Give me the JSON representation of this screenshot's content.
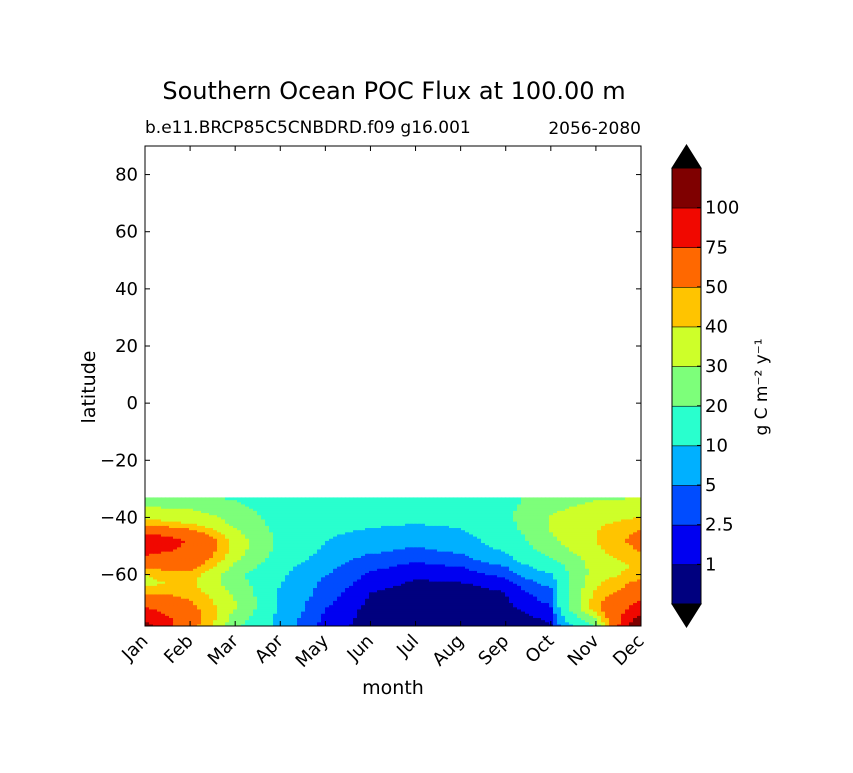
{
  "chart_data": {
    "type": "heatmap",
    "title": "Southern Ocean POC Flux at 100.00 m",
    "subtitle_left": "b.e11.BRCP85C5CNBDRD.f09 g16.001",
    "subtitle_right": "2056-2080",
    "xlabel": "month",
    "ylabel": "latitude",
    "x_ticks": [
      "Jan",
      "Feb",
      "Mar",
      "Apr",
      "May",
      "Jun",
      "Jul",
      "Aug",
      "Sep",
      "Oct",
      "Nov",
      "Dec"
    ],
    "y_ticks": [
      80,
      60,
      40,
      20,
      0,
      -20,
      -40,
      -60
    ],
    "xlim": [
      0,
      11
    ],
    "ylim": [
      -78,
      90
    ],
    "data_lat_range": [
      -78,
      -33
    ],
    "grid": false,
    "colorbar": {
      "label": "g C m⁻² y⁻¹",
      "levels": [
        0,
        1,
        2.5,
        5,
        10,
        20,
        30,
        40,
        50,
        75,
        100,
        125
      ],
      "tick_labels": [
        "1",
        "2.5",
        "5",
        "10",
        "20",
        "30",
        "40",
        "50",
        "75",
        "100"
      ],
      "colors": [
        "#00007f",
        "#0000f1",
        "#004cff",
        "#00b0ff",
        "#29ffce",
        "#7dff7a",
        "#ceff29",
        "#ffc400",
        "#ff6800",
        "#f10800",
        "#7f0000"
      ],
      "extend": "both",
      "under_color": "#000000",
      "over_color": "#000000"
    },
    "grid_data": {
      "months": [
        0,
        1,
        2,
        3,
        4,
        5,
        6,
        7,
        8,
        9,
        10,
        11
      ],
      "latitudes": [
        -78,
        -75,
        -72,
        -69,
        -66,
        -63,
        -60,
        -57,
        -54,
        -51,
        -48,
        -45,
        -42,
        -39,
        -36,
        -33
      ],
      "values": [
        [
          110,
          55,
          22,
          7,
          1.5,
          0.5,
          0.5,
          0.5,
          0.5,
          0.8,
          20,
          130
        ],
        [
          95,
          60,
          25,
          7,
          2,
          0.5,
          0.5,
          0.5,
          0.5,
          1.2,
          30,
          110
        ],
        [
          80,
          55,
          30,
          8,
          2.5,
          0.5,
          0.5,
          0.5,
          0.6,
          2,
          45,
          90
        ],
        [
          65,
          50,
          30,
          8,
          3,
          0.8,
          0.5,
          0.5,
          0.8,
          3,
          45,
          75
        ],
        [
          48,
          45,
          28,
          9,
          3.5,
          1,
          0.5,
          0.5,
          1,
          4,
          42,
          60
        ],
        [
          38,
          42,
          25,
          10,
          4,
          1.5,
          0.8,
          0.9,
          1.5,
          6,
          38,
          55
        ],
        [
          40,
          45,
          22,
          11,
          5,
          2,
          1.2,
          1.5,
          3,
          9,
          35,
          45
        ],
        [
          55,
          55,
          28,
          12,
          6,
          3,
          2,
          2.5,
          5,
          14,
          34,
          42
        ],
        [
          70,
          65,
          32,
          15,
          7,
          4,
          3,
          4,
          8,
          20,
          35,
          46
        ],
        [
          85,
          70,
          35,
          17,
          9,
          6,
          4.5,
          6,
          11,
          25,
          38,
          52
        ],
        [
          100,
          72,
          35,
          18,
          10,
          7.5,
          6,
          7.5,
          13,
          28,
          40,
          55
        ],
        [
          70,
          55,
          32,
          17,
          11,
          9,
          8,
          9,
          15,
          30,
          40,
          52
        ],
        [
          45,
          40,
          28,
          16,
          12,
          11,
          10,
          11,
          17,
          31,
          38,
          45
        ],
        [
          35,
          34,
          26,
          15,
          12,
          11,
          11,
          12,
          18,
          30,
          35,
          38
        ],
        [
          30,
          28,
          22,
          14,
          12,
          11,
          11,
          12,
          17,
          28,
          32,
          33
        ],
        [
          25,
          22,
          19,
          14,
          12,
          11,
          11,
          12,
          16,
          26,
          29,
          30
        ]
      ]
    }
  }
}
